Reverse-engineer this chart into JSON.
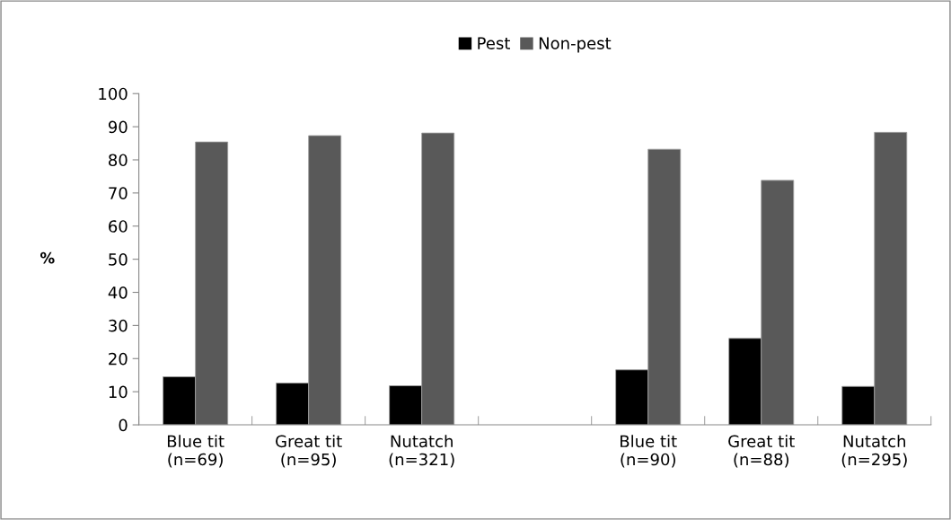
{
  "chart_data": {
    "type": "bar",
    "ylabel": "%",
    "categories": [
      "Blue tit\n(n=69)",
      "Great tit\n(n=95)",
      "Nutatch\n(n=321)",
      null,
      "Blue tit\n(n=90)",
      "Great tit\n(n=88)",
      "Nutatch\n(n=295)"
    ],
    "series": [
      {
        "name": "Pest",
        "color": "#000000",
        "values": [
          14.5,
          12.6,
          11.8,
          null,
          16.6,
          26.1,
          11.6
        ]
      },
      {
        "name": "Non-pest",
        "color": "#595959",
        "values": [
          85.4,
          87.3,
          88.1,
          null,
          83.2,
          73.8,
          88.3
        ]
      }
    ],
    "ylim": [
      0,
      100
    ],
    "yticks": [
      0,
      10,
      20,
      30,
      40,
      50,
      60,
      70,
      80,
      90,
      100
    ],
    "grid": false,
    "legend": "top"
  }
}
